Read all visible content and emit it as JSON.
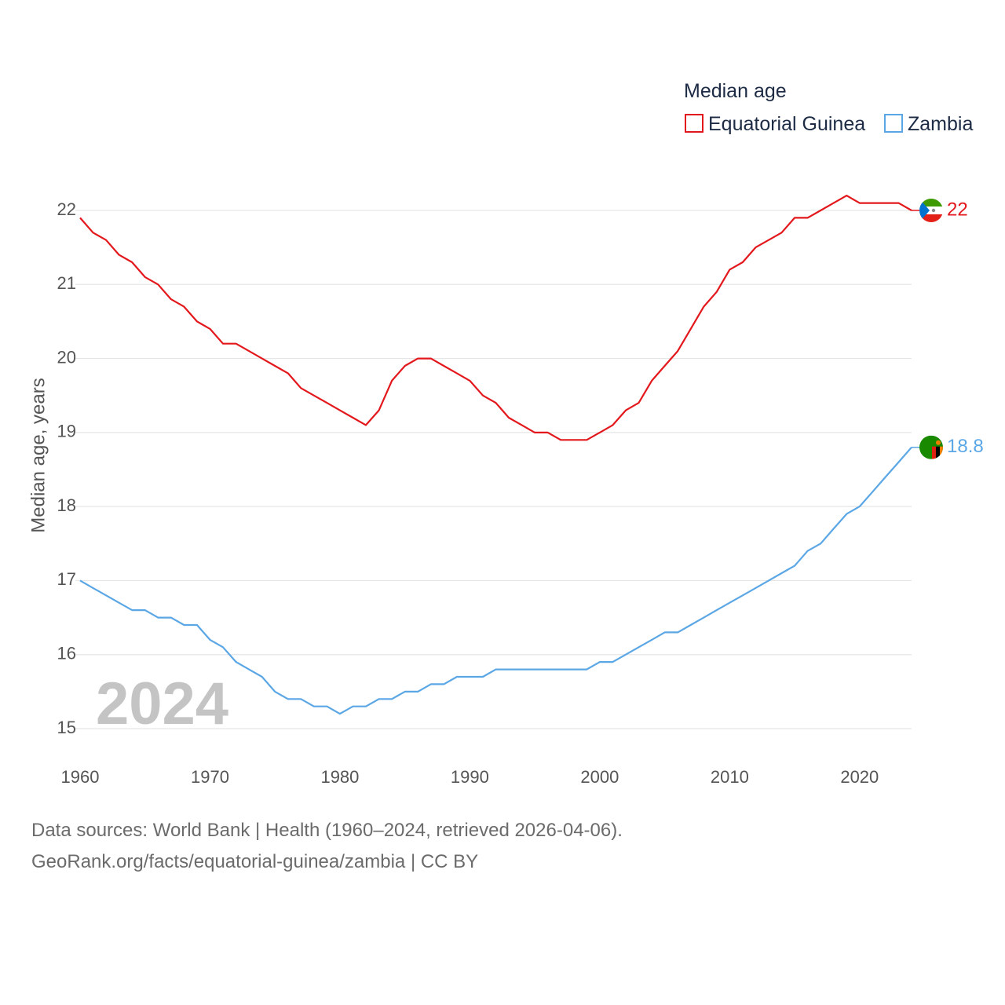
{
  "legend": {
    "title": "Median age",
    "items": [
      "Equatorial Guinea",
      "Zambia"
    ]
  },
  "year_badge": "2024",
  "footer": {
    "line1": "Data sources: World Bank | Health (1960–2024, retrieved 2026-04-06).",
    "line2": "GeoRank.org/facts/equatorial-guinea/zambia | CC BY"
  },
  "colors": {
    "equatorial_guinea": "#e3181c",
    "zambia": "#5ba7e6",
    "grid": "#e6e6e6",
    "year_badge": "#c4c4c4"
  },
  "flags": {
    "equatorial_guinea": "equatorial-guinea-flag-icon",
    "zambia": "zambia-flag-icon"
  },
  "chart_data": {
    "type": "line",
    "title": "Median age",
    "xlabel": "",
    "ylabel": "Median age, years",
    "xlim": [
      1960,
      2024
    ],
    "ylim": [
      15,
      22
    ],
    "grid": true,
    "legend_position": "top-right",
    "x_ticks": [
      1960,
      1970,
      1980,
      1990,
      2000,
      2010,
      2020
    ],
    "y_ticks": [
      15,
      16,
      17,
      18,
      19,
      20,
      21,
      22
    ],
    "x": [
      1960,
      1961,
      1962,
      1963,
      1964,
      1965,
      1966,
      1967,
      1968,
      1969,
      1970,
      1971,
      1972,
      1973,
      1974,
      1975,
      1976,
      1977,
      1978,
      1979,
      1980,
      1981,
      1982,
      1983,
      1984,
      1985,
      1986,
      1987,
      1988,
      1989,
      1990,
      1991,
      1992,
      1993,
      1994,
      1995,
      1996,
      1997,
      1998,
      1999,
      2000,
      2001,
      2002,
      2003,
      2004,
      2005,
      2006,
      2007,
      2008,
      2009,
      2010,
      2011,
      2012,
      2013,
      2014,
      2015,
      2016,
      2017,
      2018,
      2019,
      2020,
      2021,
      2022,
      2023,
      2024
    ],
    "series": [
      {
        "name": "Equatorial Guinea",
        "end_label": "22",
        "values": [
          21.9,
          21.7,
          21.6,
          21.4,
          21.3,
          21.1,
          21.0,
          20.8,
          20.7,
          20.5,
          20.4,
          20.2,
          20.2,
          20.1,
          20.0,
          19.9,
          19.8,
          19.6,
          19.5,
          19.4,
          19.3,
          19.2,
          19.1,
          19.3,
          19.7,
          19.9,
          20.0,
          20.0,
          19.9,
          19.8,
          19.7,
          19.5,
          19.4,
          19.2,
          19.1,
          19.0,
          19.0,
          18.9,
          18.9,
          18.9,
          19.0,
          19.1,
          19.3,
          19.4,
          19.7,
          19.9,
          20.1,
          20.4,
          20.7,
          20.9,
          21.2,
          21.3,
          21.5,
          21.6,
          21.7,
          21.9,
          21.9,
          22.0,
          22.1,
          22.2,
          22.1,
          22.1,
          22.1,
          22.1,
          22.0
        ]
      },
      {
        "name": "Zambia",
        "end_label": "18.8",
        "values": [
          17.0,
          16.9,
          16.8,
          16.7,
          16.6,
          16.6,
          16.5,
          16.5,
          16.4,
          16.4,
          16.2,
          16.1,
          15.9,
          15.8,
          15.7,
          15.5,
          15.4,
          15.4,
          15.3,
          15.3,
          15.2,
          15.3,
          15.3,
          15.4,
          15.4,
          15.5,
          15.5,
          15.6,
          15.6,
          15.7,
          15.7,
          15.7,
          15.8,
          15.8,
          15.8,
          15.8,
          15.8,
          15.8,
          15.8,
          15.8,
          15.9,
          15.9,
          16.0,
          16.1,
          16.2,
          16.3,
          16.3,
          16.4,
          16.5,
          16.6,
          16.7,
          16.8,
          16.9,
          17.0,
          17.1,
          17.2,
          17.4,
          17.5,
          17.7,
          17.9,
          18.0,
          18.2,
          18.4,
          18.6,
          18.8
        ]
      }
    ]
  }
}
